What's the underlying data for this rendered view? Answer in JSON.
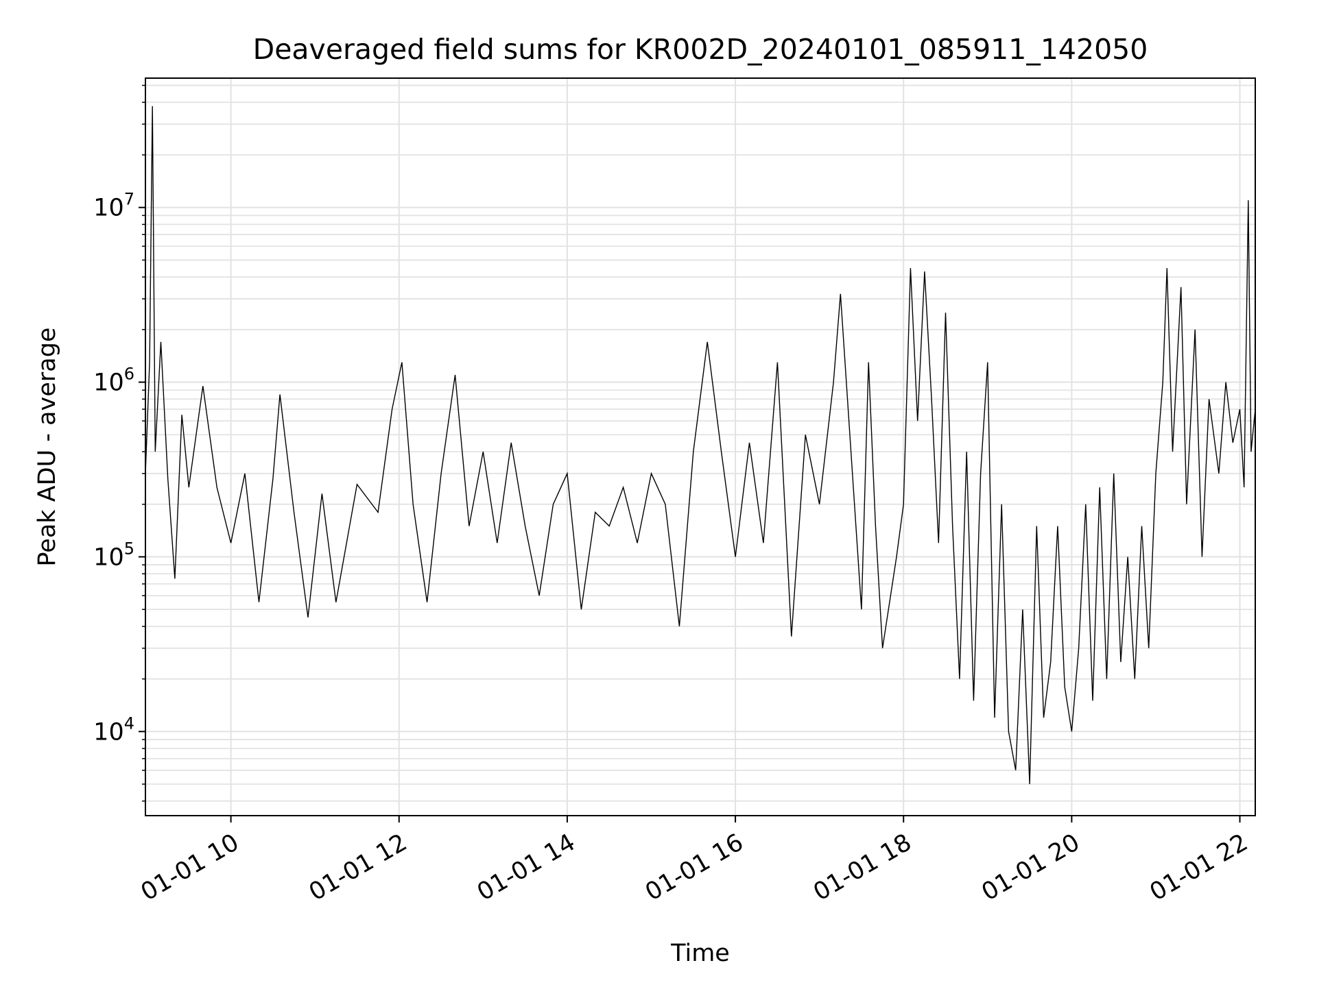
{
  "chart_data": {
    "type": "line",
    "title": "Deaveraged field sums for KR002D_20240101_085911_142050",
    "xlabel": "Time",
    "ylabel": "Peak ADU - average",
    "yscale": "log",
    "grid": true,
    "x_ticks": [
      "01-01 10",
      "01-01 12",
      "01-01 14",
      "01-01 16",
      "01-01 18",
      "01-01 20",
      "01-01 22"
    ],
    "y_ticks": [
      {
        "base": "10",
        "exp": "4",
        "value": 10000
      },
      {
        "base": "10",
        "exp": "5",
        "value": 100000
      },
      {
        "base": "10",
        "exp": "6",
        "value": 1000000
      },
      {
        "base": "10",
        "exp": "7",
        "value": 10000000
      }
    ],
    "xlim": [
      "2024-01-01 08:59",
      "2024-01-01 22:11"
    ],
    "ylim": [
      3300,
      55000000
    ],
    "series": [
      {
        "color": "#000000",
        "points": [
          [
            "2024-01-01 08:59",
            300000
          ],
          [
            "2024-01-01 09:02",
            1300000
          ],
          [
            "2024-01-01 09:04",
            38000000
          ],
          [
            "2024-01-01 09:06",
            400000
          ],
          [
            "2024-01-01 09:10",
            1700000
          ],
          [
            "2024-01-01 09:15",
            280000
          ],
          [
            "2024-01-01 09:20",
            75000
          ],
          [
            "2024-01-01 09:25",
            650000
          ],
          [
            "2024-01-01 09:30",
            250000
          ],
          [
            "2024-01-01 09:40",
            950000
          ],
          [
            "2024-01-01 09:50",
            250000
          ],
          [
            "2024-01-01 10:00",
            120000
          ],
          [
            "2024-01-01 10:10",
            300000
          ],
          [
            "2024-01-01 10:20",
            55000
          ],
          [
            "2024-01-01 10:30",
            280000
          ],
          [
            "2024-01-01 10:35",
            850000
          ],
          [
            "2024-01-01 10:45",
            180000
          ],
          [
            "2024-01-01 10:55",
            45000
          ],
          [
            "2024-01-01 11:05",
            230000
          ],
          [
            "2024-01-01 11:15",
            55000
          ],
          [
            "2024-01-01 11:30",
            260000
          ],
          [
            "2024-01-01 11:45",
            180000
          ],
          [
            "2024-01-01 11:55",
            700000
          ],
          [
            "2024-01-01 12:02",
            1300000
          ],
          [
            "2024-01-01 12:10",
            200000
          ],
          [
            "2024-01-01 12:20",
            55000
          ],
          [
            "2024-01-01 12:30",
            300000
          ],
          [
            "2024-01-01 12:40",
            1100000
          ],
          [
            "2024-01-01 12:50",
            150000
          ],
          [
            "2024-01-01 13:00",
            400000
          ],
          [
            "2024-01-01 13:10",
            120000
          ],
          [
            "2024-01-01 13:20",
            450000
          ],
          [
            "2024-01-01 13:30",
            150000
          ],
          [
            "2024-01-01 13:40",
            60000
          ],
          [
            "2024-01-01 13:50",
            200000
          ],
          [
            "2024-01-01 14:00",
            300000
          ],
          [
            "2024-01-01 14:10",
            50000
          ],
          [
            "2024-01-01 14:20",
            180000
          ],
          [
            "2024-01-01 14:30",
            150000
          ],
          [
            "2024-01-01 14:40",
            250000
          ],
          [
            "2024-01-01 14:50",
            120000
          ],
          [
            "2024-01-01 15:00",
            300000
          ],
          [
            "2024-01-01 15:10",
            200000
          ],
          [
            "2024-01-01 15:20",
            40000
          ],
          [
            "2024-01-01 15:30",
            400000
          ],
          [
            "2024-01-01 15:40",
            1700000
          ],
          [
            "2024-01-01 15:50",
            400000
          ],
          [
            "2024-01-01 16:00",
            100000
          ],
          [
            "2024-01-01 16:10",
            450000
          ],
          [
            "2024-01-01 16:20",
            120000
          ],
          [
            "2024-01-01 16:30",
            1300000
          ],
          [
            "2024-01-01 16:40",
            35000
          ],
          [
            "2024-01-01 16:50",
            500000
          ],
          [
            "2024-01-01 17:00",
            200000
          ],
          [
            "2024-01-01 17:10",
            1000000
          ],
          [
            "2024-01-01 17:15",
            3200000
          ],
          [
            "2024-01-01 17:25",
            200000
          ],
          [
            "2024-01-01 17:30",
            50000
          ],
          [
            "2024-01-01 17:35",
            1300000
          ],
          [
            "2024-01-01 17:40",
            150000
          ],
          [
            "2024-01-01 17:45",
            30000
          ],
          [
            "2024-01-01 17:55",
            100000
          ],
          [
            "2024-01-01 18:00",
            200000
          ],
          [
            "2024-01-01 18:05",
            4500000
          ],
          [
            "2024-01-01 18:10",
            600000
          ],
          [
            "2024-01-01 18:15",
            4300000
          ],
          [
            "2024-01-01 18:20",
            800000
          ],
          [
            "2024-01-01 18:25",
            120000
          ],
          [
            "2024-01-01 18:30",
            2500000
          ],
          [
            "2024-01-01 18:35",
            150000
          ],
          [
            "2024-01-01 18:40",
            20000
          ],
          [
            "2024-01-01 18:45",
            400000
          ],
          [
            "2024-01-01 18:50",
            15000
          ],
          [
            "2024-01-01 18:55",
            300000
          ],
          [
            "2024-01-01 19:00",
            1300000
          ],
          [
            "2024-01-01 19:05",
            12000
          ],
          [
            "2024-01-01 19:10",
            200000
          ],
          [
            "2024-01-01 19:15",
            10000
          ],
          [
            "2024-01-01 19:20",
            6000
          ],
          [
            "2024-01-01 19:25",
            50000
          ],
          [
            "2024-01-01 19:30",
            5000
          ],
          [
            "2024-01-01 19:35",
            150000
          ],
          [
            "2024-01-01 19:40",
            12000
          ],
          [
            "2024-01-01 19:45",
            25000
          ],
          [
            "2024-01-01 19:50",
            150000
          ],
          [
            "2024-01-01 19:55",
            18000
          ],
          [
            "2024-01-01 20:00",
            10000
          ],
          [
            "2024-01-01 20:05",
            30000
          ],
          [
            "2024-01-01 20:10",
            200000
          ],
          [
            "2024-01-01 20:15",
            15000
          ],
          [
            "2024-01-01 20:20",
            250000
          ],
          [
            "2024-01-01 20:25",
            20000
          ],
          [
            "2024-01-01 20:30",
            300000
          ],
          [
            "2024-01-01 20:35",
            25000
          ],
          [
            "2024-01-01 20:40",
            100000
          ],
          [
            "2024-01-01 20:45",
            20000
          ],
          [
            "2024-01-01 20:50",
            150000
          ],
          [
            "2024-01-01 20:55",
            30000
          ],
          [
            "2024-01-01 21:00",
            300000
          ],
          [
            "2024-01-01 21:05",
            1000000
          ],
          [
            "2024-01-01 21:08",
            4500000
          ],
          [
            "2024-01-01 21:12",
            400000
          ],
          [
            "2024-01-01 21:18",
            3500000
          ],
          [
            "2024-01-01 21:22",
            200000
          ],
          [
            "2024-01-01 21:28",
            2000000
          ],
          [
            "2024-01-01 21:33",
            100000
          ],
          [
            "2024-01-01 21:38",
            800000
          ],
          [
            "2024-01-01 21:45",
            300000
          ],
          [
            "2024-01-01 21:50",
            1000000
          ],
          [
            "2024-01-01 21:55",
            450000
          ],
          [
            "2024-01-01 22:00",
            700000
          ],
          [
            "2024-01-01 22:03",
            250000
          ],
          [
            "2024-01-01 22:06",
            11000000
          ],
          [
            "2024-01-01 22:08",
            400000
          ],
          [
            "2024-01-01 22:11",
            700000
          ]
        ]
      }
    ]
  }
}
